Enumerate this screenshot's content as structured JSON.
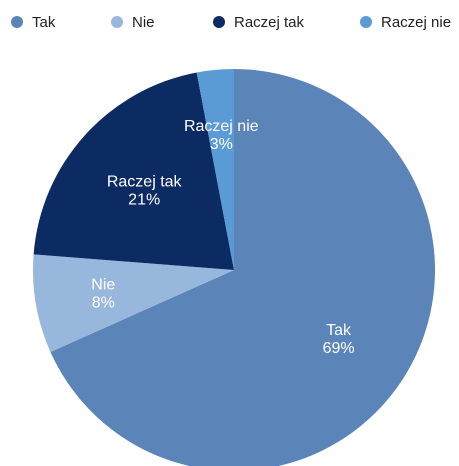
{
  "legend": [
    {
      "label": "Tak",
      "color": "#5b84b8"
    },
    {
      "label": "Nie",
      "color": "#98b7dd"
    },
    {
      "label": "Raczej tak",
      "color": "#0c2b63"
    },
    {
      "label": "Raczej nie",
      "color": "#5a9bd6"
    }
  ],
  "chart_data": {
    "type": "pie",
    "title": "",
    "slices": [
      {
        "label": "Tak",
        "value": 69,
        "value_label": "69%",
        "color": "#5b84b8"
      },
      {
        "label": "Nie",
        "value": 8,
        "value_label": "8%",
        "color": "#98b7dd"
      },
      {
        "label": "Raczej tak",
        "value": 21,
        "value_label": "21%",
        "color": "#0c2b63"
      },
      {
        "label": "Raczej nie",
        "value": 3,
        "value_label": "3%",
        "color": "#5a9bd6"
      }
    ],
    "legend_position": "top"
  }
}
